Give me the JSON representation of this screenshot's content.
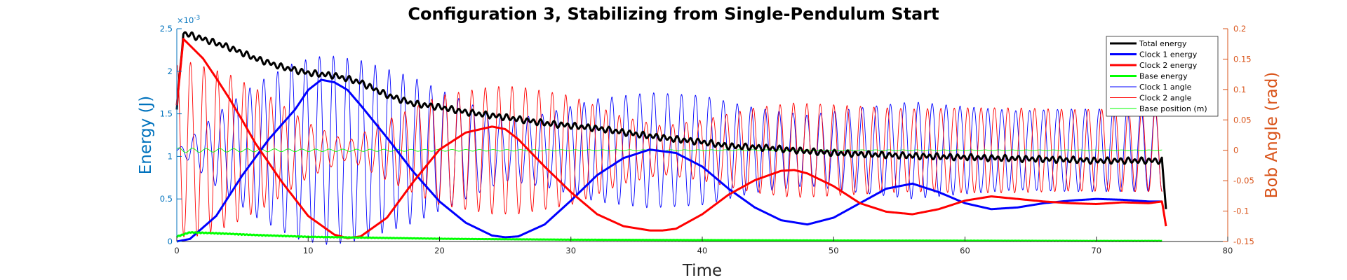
{
  "chart_data": {
    "type": "line",
    "title": "Configuration 3, Stabilizing from Single-Pendulum Start",
    "xlabel": "Time",
    "ylabel_left": "Energy (J)",
    "ylabel_right": "Bob Angle (rad)",
    "left_exponent_base": "×10",
    "left_exponent_power": "-3",
    "xlim": [
      0,
      80
    ],
    "ylim_left": [
      0,
      2.5
    ],
    "ylim_right": [
      -0.15,
      0.2
    ],
    "xticks": [
      "0",
      "10",
      "20",
      "30",
      "40",
      "50",
      "60",
      "70",
      "80"
    ],
    "yticks_left": [
      "0",
      "0.5",
      "1",
      "1.5",
      "2",
      "2.5"
    ],
    "yticks_right": [
      "-0.15",
      "-0.1",
      "-0.05",
      "0",
      "0.05",
      "0.1",
      "0.15",
      "0.2"
    ],
    "colors": {
      "left_axis": "#0072BD",
      "right_axis": "#D95319"
    },
    "legend_position": "top-right",
    "grid": false,
    "series": [
      {
        "name": "Total energy",
        "axis": "left",
        "color": "#000000",
        "width": 3,
        "kind": "energy",
        "x": [
          0,
          0.5,
          2,
          4,
          6,
          8,
          10,
          12,
          14,
          16,
          18,
          20,
          22,
          25,
          28,
          30,
          32,
          35,
          38,
          40,
          42,
          45,
          48,
          50,
          55,
          60,
          65,
          68,
          70,
          72,
          74,
          75,
          75.3
        ],
        "y": [
          1.55,
          2.45,
          2.38,
          2.28,
          2.15,
          2.05,
          1.98,
          1.95,
          1.87,
          1.72,
          1.62,
          1.58,
          1.52,
          1.46,
          1.39,
          1.36,
          1.33,
          1.26,
          1.2,
          1.17,
          1.12,
          1.1,
          1.06,
          1.04,
          1.01,
          0.99,
          0.97,
          0.96,
          0.95,
          0.95,
          0.95,
          0.95,
          0.38
        ]
      },
      {
        "name": "Clock 1 energy",
        "axis": "left",
        "color": "#0000FF",
        "width": 3,
        "kind": "energy",
        "x": [
          0,
          1,
          3,
          5,
          7,
          9,
          10,
          11,
          12,
          13,
          14,
          16,
          18,
          20,
          22,
          24,
          25,
          26,
          28,
          30,
          32,
          34,
          36,
          38,
          40,
          42,
          44,
          46,
          48,
          50,
          52,
          54,
          56,
          58,
          60,
          62,
          64,
          66,
          68,
          70,
          72,
          74,
          75
        ],
        "y": [
          0,
          0.03,
          0.3,
          0.78,
          1.2,
          1.55,
          1.78,
          1.9,
          1.87,
          1.78,
          1.6,
          1.22,
          0.82,
          0.47,
          0.22,
          0.07,
          0.05,
          0.06,
          0.2,
          0.48,
          0.78,
          0.98,
          1.08,
          1.04,
          0.88,
          0.62,
          0.4,
          0.25,
          0.2,
          0.28,
          0.45,
          0.62,
          0.68,
          0.58,
          0.45,
          0.38,
          0.4,
          0.45,
          0.48,
          0.5,
          0.49,
          0.47,
          0.47
        ]
      },
      {
        "name": "Clock 2 energy",
        "axis": "left",
        "color": "#FF0000",
        "width": 3,
        "kind": "energy",
        "x": [
          0,
          0.5,
          2,
          3,
          4,
          5,
          6,
          8,
          10,
          12,
          13,
          14,
          16,
          18,
          20,
          22,
          24,
          25,
          26,
          28,
          30,
          32,
          34,
          36,
          37,
          38,
          40,
          42,
          44,
          46,
          47,
          48,
          50,
          52,
          54,
          56,
          58,
          60,
          62,
          64,
          66,
          68,
          70,
          72,
          74,
          75,
          75.3
        ],
        "y": [
          1.6,
          2.38,
          2.15,
          1.92,
          1.68,
          1.42,
          1.15,
          0.7,
          0.3,
          0.08,
          0.04,
          0.06,
          0.28,
          0.7,
          1.08,
          1.28,
          1.35,
          1.32,
          1.2,
          0.88,
          0.58,
          0.32,
          0.18,
          0.13,
          0.13,
          0.15,
          0.32,
          0.55,
          0.72,
          0.83,
          0.84,
          0.8,
          0.65,
          0.45,
          0.35,
          0.32,
          0.38,
          0.48,
          0.53,
          0.5,
          0.47,
          0.45,
          0.44,
          0.46,
          0.45,
          0.47,
          0.18
        ]
      },
      {
        "name": "Base energy",
        "axis": "left",
        "color": "#00FF00",
        "width": 3,
        "kind": "energy",
        "x": [
          0,
          1,
          3,
          6,
          10,
          15,
          20,
          30,
          40,
          50,
          60,
          70,
          75
        ],
        "y": [
          0.05,
          0.1,
          0.09,
          0.07,
          0.05,
          0.04,
          0.03,
          0.02,
          0.015,
          0.01,
          0.008,
          0.005,
          0.005
        ]
      },
      {
        "name": "Clock 1 angle",
        "axis": "right",
        "color": "#0000FF",
        "width": 0.9,
        "kind": "oscillation",
        "period": 1.06,
        "phase": 0.0,
        "mean": 0.0,
        "env_x": [
          0,
          3,
          6,
          9,
          11,
          12,
          14,
          18,
          22,
          25,
          28,
          32,
          36,
          40,
          44,
          48,
          52,
          56,
          60,
          64,
          68,
          72,
          75
        ],
        "env_y": [
          0.0,
          0.06,
          0.11,
          0.145,
          0.155,
          0.155,
          0.148,
          0.12,
          0.08,
          0.05,
          0.06,
          0.085,
          0.095,
          0.09,
          0.07,
          0.058,
          0.07,
          0.08,
          0.072,
          0.065,
          0.068,
          0.068,
          0.067
        ]
      },
      {
        "name": "Clock 2 angle",
        "axis": "right",
        "color": "#FF0000",
        "width": 0.9,
        "kind": "oscillation",
        "period": 1.02,
        "phase": 1.4,
        "mean": 0.0,
        "env_x": [
          0,
          1,
          4,
          7,
          10,
          13,
          16,
          20,
          24,
          26,
          30,
          34,
          37,
          40,
          44,
          47,
          50,
          54,
          56,
          60,
          64,
          68,
          72,
          75
        ],
        "env_y": [
          0.14,
          0.145,
          0.125,
          0.09,
          0.045,
          0.015,
          0.05,
          0.09,
          0.105,
          0.105,
          0.09,
          0.055,
          0.04,
          0.05,
          0.07,
          0.078,
          0.075,
          0.07,
          0.068,
          0.07,
          0.07,
          0.067,
          0.068,
          0.068
        ]
      },
      {
        "name": "Base position (m)",
        "axis": "right",
        "color": "#00FF00",
        "width": 0.9,
        "kind": "oscillation",
        "period": 1.04,
        "phase": 0.6,
        "mean": 0.0,
        "env_x": [
          0,
          2,
          10,
          30,
          75
        ],
        "env_y": [
          0.004,
          0.003,
          0.002,
          0.001,
          0.0006
        ]
      }
    ]
  }
}
